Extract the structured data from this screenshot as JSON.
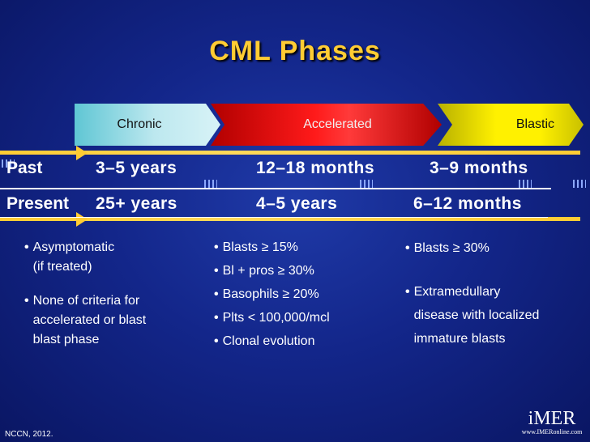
{
  "title": "CML Phases",
  "phases": {
    "chronic": "Chronic",
    "accelerated": "Accelerated",
    "blastic": "Blastic"
  },
  "rows": {
    "past": {
      "label": "Past",
      "chronic": "3–5 years",
      "accelerated": "12–18 months",
      "blastic": "3–9 months"
    },
    "present": {
      "label": "Present",
      "chronic": "25+ years",
      "accelerated": "4–5 years",
      "blastic": "6–12 months"
    }
  },
  "criteria": {
    "chronic": [
      "Asymptomatic\n(if treated)",
      "None of criteria for\naccelerated or blast\nblast phase"
    ],
    "accelerated": [
      "Blasts ≥ 15%",
      "Bl + pros ≥ 30%",
      "Basophils ≥ 20%",
      "Plts < 100,000/mcl",
      "Clonal evolution"
    ],
    "blastic": [
      "Blasts ≥ 30%",
      "Extramedullary\ndisease with localized\nimmature blasts"
    ]
  },
  "footer": "NCCN, 2012.",
  "logo": {
    "mark": "iMER",
    "url": "www.IMERonline.com"
  },
  "colors": {
    "background": "#13268a",
    "title": "#ffcc33",
    "chronic": "#bde8ef",
    "accelerated": "#ff1a1a",
    "blastic": "#fff100",
    "timeline": "#ffcc33"
  }
}
